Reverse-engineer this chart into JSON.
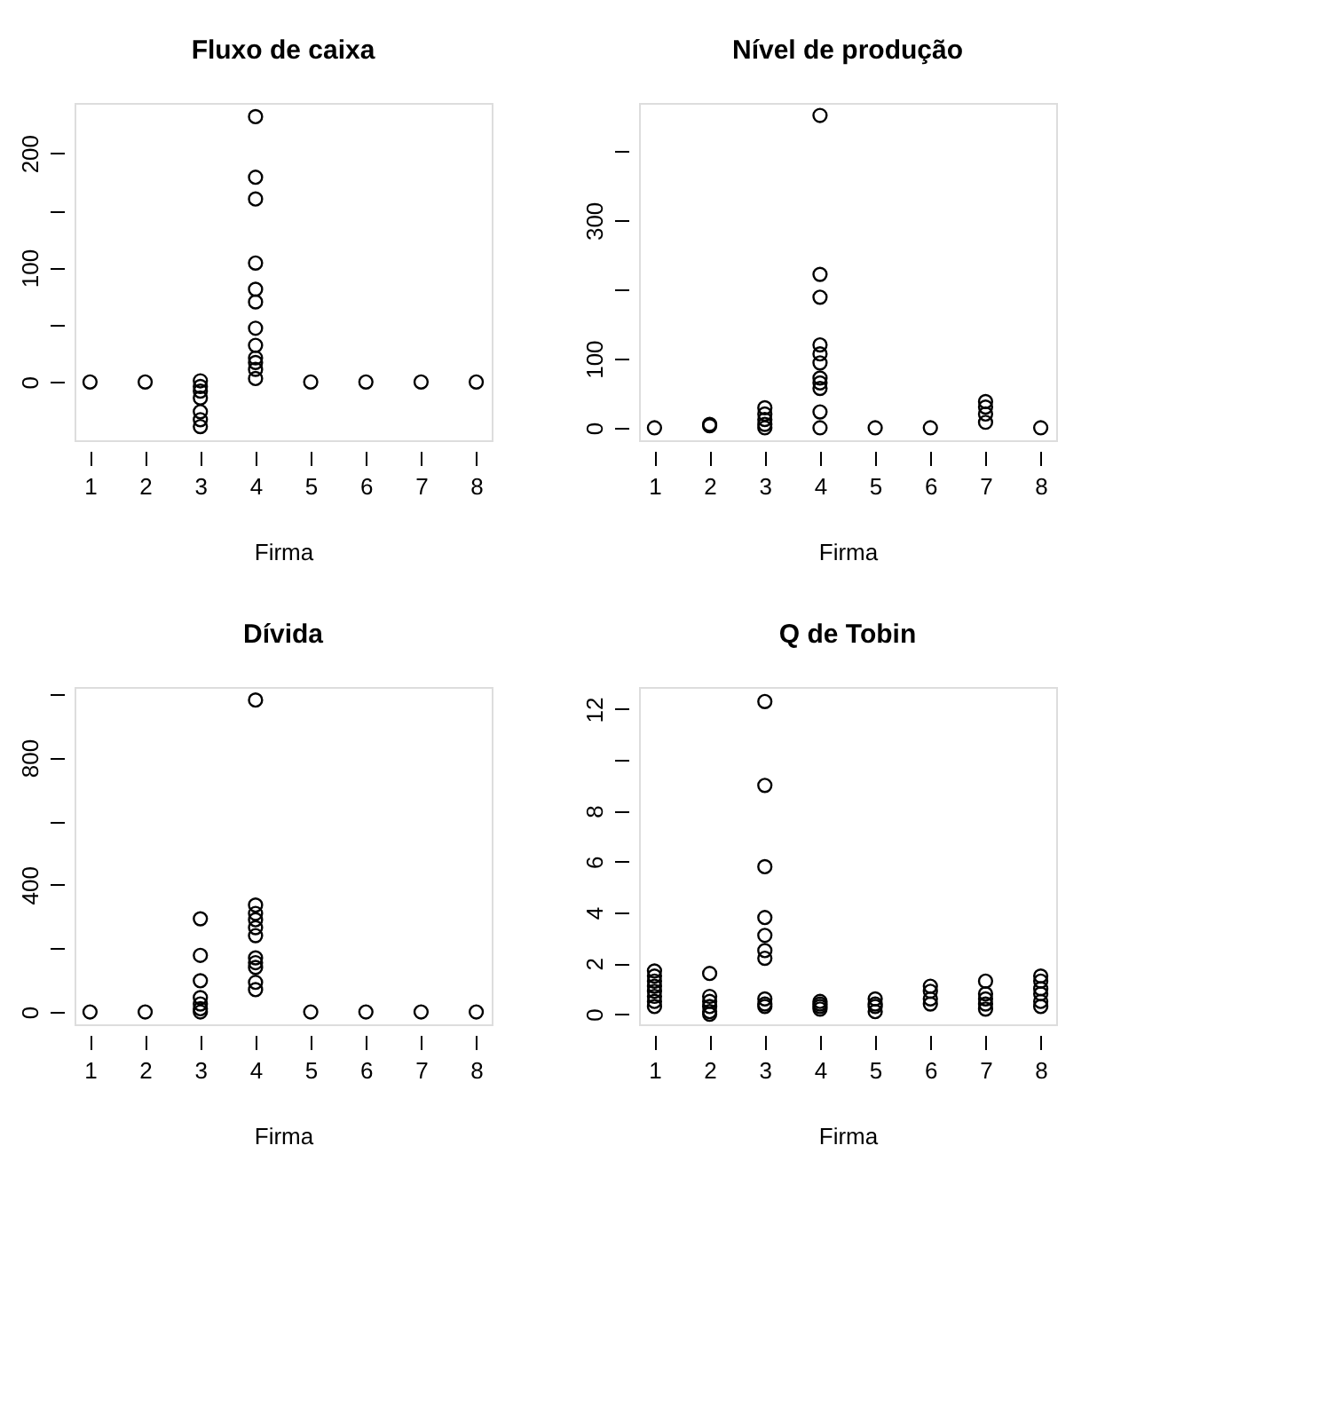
{
  "chart_data": [
    {
      "type": "scatter",
      "title": "Fluxo de caixa",
      "xlabel": "Firma",
      "marker": "circle",
      "grid": false,
      "xlim": [
        0.72,
        8.28
      ],
      "xticks": [
        1,
        2,
        3,
        4,
        5,
        6,
        7,
        8
      ],
      "ylim": [
        -51,
        244
      ],
      "yticks": [
        0,
        {
          "value": 50,
          "label": null
        },
        100,
        {
          "value": 150,
          "label": null
        },
        200
      ],
      "series": [
        {
          "color": "#000000",
          "x": [
            1,
            2,
            3,
            3,
            3,
            3,
            3,
            3,
            3,
            4,
            4,
            4,
            4,
            4,
            4,
            4,
            4,
            4,
            4,
            4,
            4,
            5,
            6,
            7,
            8
          ],
          "values": [
            0,
            0,
            1,
            -4,
            -8,
            -14,
            -26,
            -33,
            -39,
            232,
            179,
            160,
            104,
            81,
            70,
            47,
            32,
            21,
            17,
            11,
            3,
            0,
            0,
            0,
            0
          ]
        }
      ]
    },
    {
      "type": "scatter",
      "title": "Nível de produção",
      "xlabel": "Firma",
      "marker": "circle",
      "grid": false,
      "xlim": [
        0.72,
        8.28
      ],
      "xticks": [
        1,
        2,
        3,
        4,
        5,
        6,
        7,
        8
      ],
      "ylim": [
        -18,
        470
      ],
      "yticks": [
        0,
        100,
        {
          "value": 200,
          "label": null
        },
        300,
        {
          "value": 400,
          "label": null
        }
      ],
      "series": [
        {
          "color": "#000000",
          "x": [
            1,
            2,
            2,
            3,
            3,
            3,
            3,
            3,
            4,
            4,
            4,
            4,
            4,
            4,
            4,
            4,
            4,
            4,
            4,
            5,
            6,
            7,
            7,
            7,
            7,
            8
          ],
          "values": [
            0,
            3,
            5,
            29,
            20,
            12,
            5,
            0,
            452,
            222,
            189,
            120,
            107,
            94,
            72,
            65,
            57,
            23,
            0,
            0,
            0,
            38,
            30,
            20,
            8,
            0
          ]
        }
      ]
    },
    {
      "type": "scatter",
      "title": "Dívida",
      "xlabel": "Firma",
      "marker": "circle",
      "grid": false,
      "xlim": [
        0.72,
        8.28
      ],
      "xticks": [
        1,
        2,
        3,
        4,
        5,
        6,
        7,
        8
      ],
      "ylim": [
        -39,
        1022
      ],
      "yticks": [
        0,
        {
          "value": 200,
          "label": null
        },
        400,
        {
          "value": 600,
          "label": null
        },
        800,
        {
          "value": 1000,
          "label": null
        }
      ],
      "series": [
        {
          "color": "#000000",
          "x": [
            1,
            2,
            3,
            3,
            3,
            3,
            3,
            3,
            3,
            4,
            4,
            4,
            4,
            4,
            4,
            4,
            4,
            4,
            4,
            4,
            5,
            6,
            7,
            8
          ],
          "values": [
            0,
            0,
            293,
            178,
            98,
            45,
            25,
            10,
            0,
            981,
            336,
            310,
            290,
            265,
            240,
            170,
            155,
            140,
            93,
            70,
            0,
            0,
            0,
            0
          ]
        }
      ]
    },
    {
      "type": "scatter",
      "title": "Q de Tobin",
      "xlabel": "Firma",
      "marker": "circle",
      "grid": false,
      "xlim": [
        0.72,
        8.28
      ],
      "xticks": [
        1,
        2,
        3,
        4,
        5,
        6,
        7,
        8
      ],
      "ylim": [
        -0.4,
        12.87
      ],
      "yticks": [
        0,
        2,
        4,
        6,
        8,
        {
          "value": 10,
          "label": null
        },
        12
      ],
      "series": [
        {
          "color": "#000000",
          "x": [
            1,
            1,
            1,
            1,
            1,
            1,
            1,
            1,
            2,
            2,
            2,
            2,
            2,
            2,
            3,
            3,
            3,
            3,
            3,
            3,
            3,
            3,
            3,
            3,
            4,
            4,
            4,
            4,
            5,
            5,
            5,
            5,
            6,
            6,
            6,
            6,
            7,
            7,
            7,
            7,
            7,
            8,
            8,
            8,
            8,
            8,
            8
          ],
          "values": [
            1.7,
            1.5,
            1.3,
            1.1,
            0.9,
            0.7,
            0.5,
            0.3,
            1.6,
            0.7,
            0.5,
            0.3,
            0.1,
            0,
            12.3,
            9.0,
            5.8,
            3.8,
            3.1,
            2.5,
            2.2,
            0.6,
            0.4,
            0.3,
            0.5,
            0.4,
            0.3,
            0.2,
            0.6,
            0.4,
            0.3,
            0.1,
            1.1,
            0.9,
            0.6,
            0.4,
            1.3,
            0.8,
            0.6,
            0.4,
            0.2,
            1.5,
            1.3,
            1.0,
            0.8,
            0.5,
            0.3
          ]
        }
      ]
    }
  ]
}
